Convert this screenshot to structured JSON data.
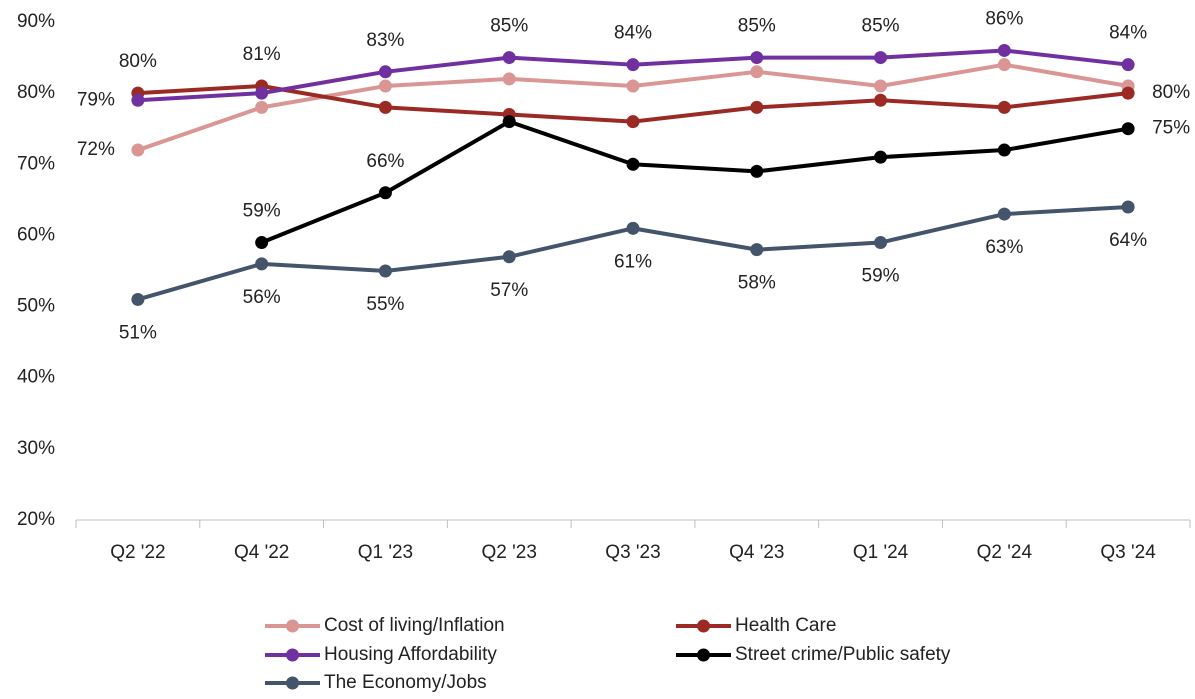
{
  "chart_data": {
    "type": "line",
    "categories": [
      "Q2 '22",
      "Q4 '22",
      "Q1 '23",
      "Q2 '23",
      "Q3 '23",
      "Q4 '23",
      "Q1 '24",
      "Q2 '24",
      "Q3 '24"
    ],
    "series": [
      {
        "name": "Cost of living/Inflation",
        "color": "#d99694",
        "values": [
          72,
          78,
          81,
          82,
          81,
          83,
          81,
          84,
          81
        ],
        "value_labels": [
          "72%",
          null,
          null,
          null,
          null,
          null,
          null,
          null,
          null
        ]
      },
      {
        "name": "Health Care",
        "color": "#9b2a24",
        "values": [
          80,
          81,
          78,
          77,
          76,
          78,
          79,
          78,
          80
        ],
        "value_labels": [
          "80%",
          "81%",
          null,
          null,
          null,
          null,
          null,
          null,
          "80%"
        ]
      },
      {
        "name": "Housing Affordability",
        "color": "#7030a0",
        "values": [
          79,
          80,
          83,
          85,
          84,
          85,
          85,
          86,
          84
        ],
        "value_labels": [
          "79%",
          null,
          "83%",
          "85%",
          "84%",
          "85%",
          "85%",
          "86%",
          "84%"
        ]
      },
      {
        "name": "Street crime/Public safety",
        "color": "#000000",
        "values": [
          null,
          59,
          66,
          76,
          70,
          69,
          71,
          72,
          75
        ],
        "value_labels": [
          null,
          "59%",
          "66%",
          null,
          null,
          null,
          null,
          null,
          "75%"
        ]
      },
      {
        "name": "The Economy/Jobs",
        "color": "#44546a",
        "values": [
          51,
          56,
          55,
          57,
          61,
          58,
          59,
          63,
          64
        ],
        "value_labels": [
          "51%",
          "56%",
          "55%",
          "57%",
          "61%",
          "58%",
          "59%",
          "63%",
          "64%"
        ]
      }
    ],
    "ylim": [
      20,
      90
    ],
    "yticks": [
      {
        "value": 20,
        "label": "20%"
      },
      {
        "value": 30,
        "label": "30%"
      },
      {
        "value": 40,
        "label": "40%"
      },
      {
        "value": 50,
        "label": "50%"
      },
      {
        "value": 60,
        "label": "60%"
      },
      {
        "value": 70,
        "label": "70%"
      },
      {
        "value": 80,
        "label": "80%"
      },
      {
        "value": 90,
        "label": "90%"
      }
    ],
    "grid": false
  }
}
